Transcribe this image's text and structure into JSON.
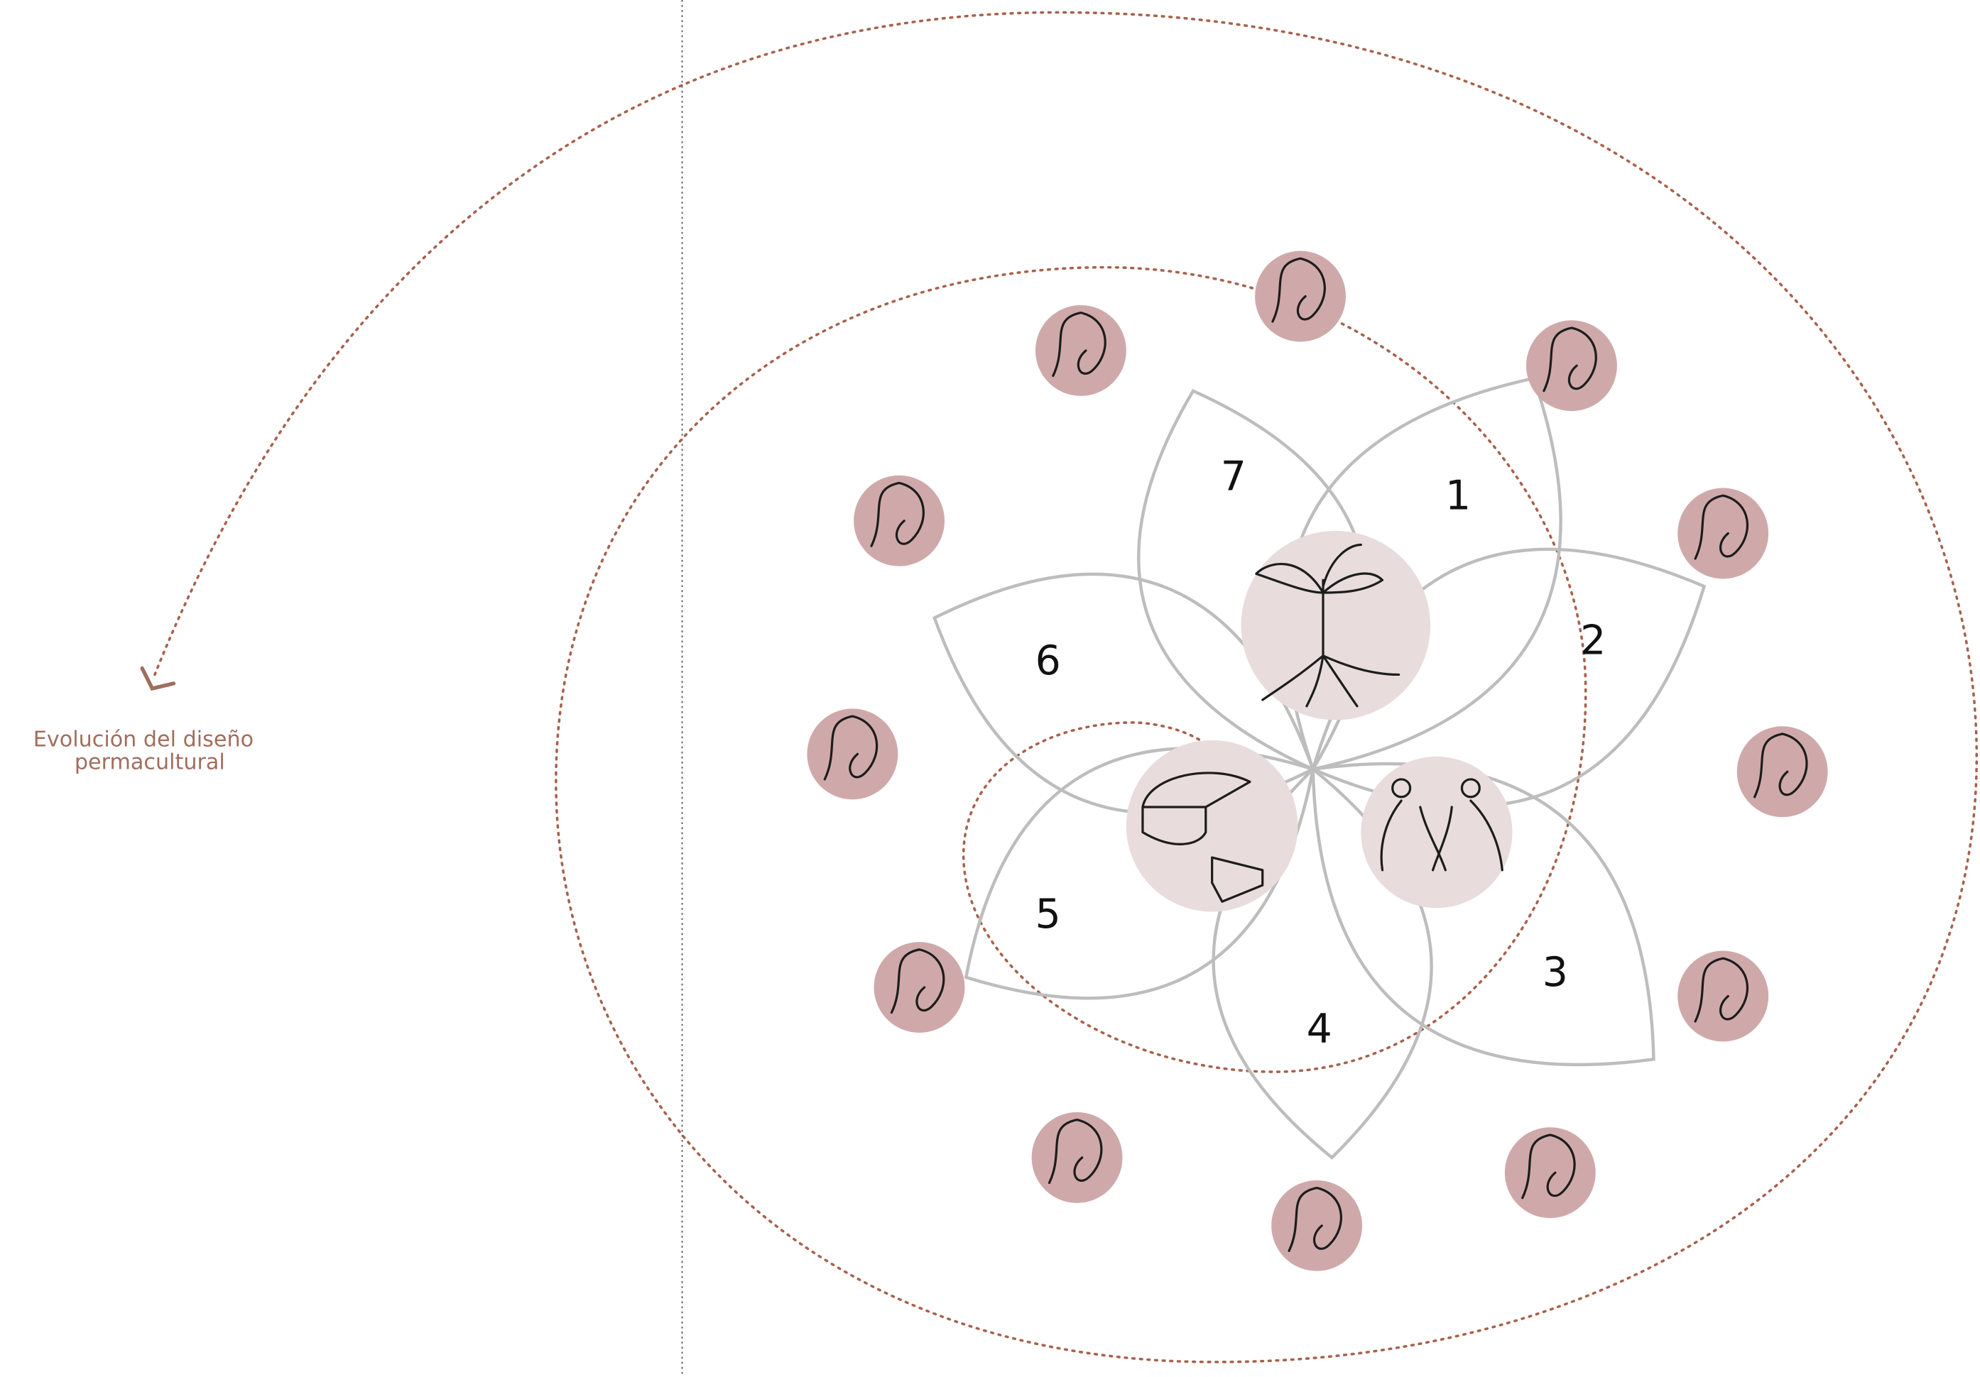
{
  "caption": {
    "lines": [
      "Evolución del diseño",
      "permacultural"
    ]
  },
  "petals": [
    {
      "label": "1"
    },
    {
      "label": "2"
    },
    {
      "label": "3"
    },
    {
      "label": "4"
    },
    {
      "label": "5"
    },
    {
      "label": "6"
    },
    {
      "label": "7"
    }
  ]
}
